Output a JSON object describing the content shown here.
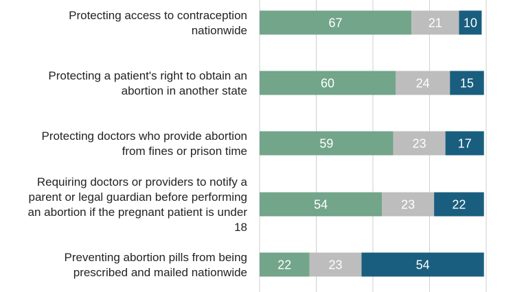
{
  "chart_data": {
    "type": "bar",
    "orientation": "horizontal",
    "stacked": true,
    "categories": [
      [
        "Protecting access to contraception",
        "nationwide"
      ],
      [
        "Protecting a patient's right to obtain an",
        "abortion in another state"
      ],
      [
        "Protecting doctors who provide abortion",
        "from fines or prison time"
      ],
      [
        "Requiring doctors or providers to notify a",
        "parent or legal guardian before performing",
        "an abortion if the pregnant patient is under",
        "18"
      ],
      [
        "Preventing abortion pills from being",
        "prescribed and mailed nationwide"
      ]
    ],
    "series": [
      {
        "values": [
          67,
          60,
          59,
          54,
          22
        ],
        "color": "#72a58a"
      },
      {
        "values": [
          21,
          24,
          23,
          23,
          23
        ],
        "color": "#bdbdbd"
      },
      {
        "values": [
          10,
          15,
          17,
          22,
          54
        ],
        "color": "#195e7e"
      }
    ],
    "xlim": [
      0,
      100
    ],
    "grid": true,
    "legend": "none"
  }
}
